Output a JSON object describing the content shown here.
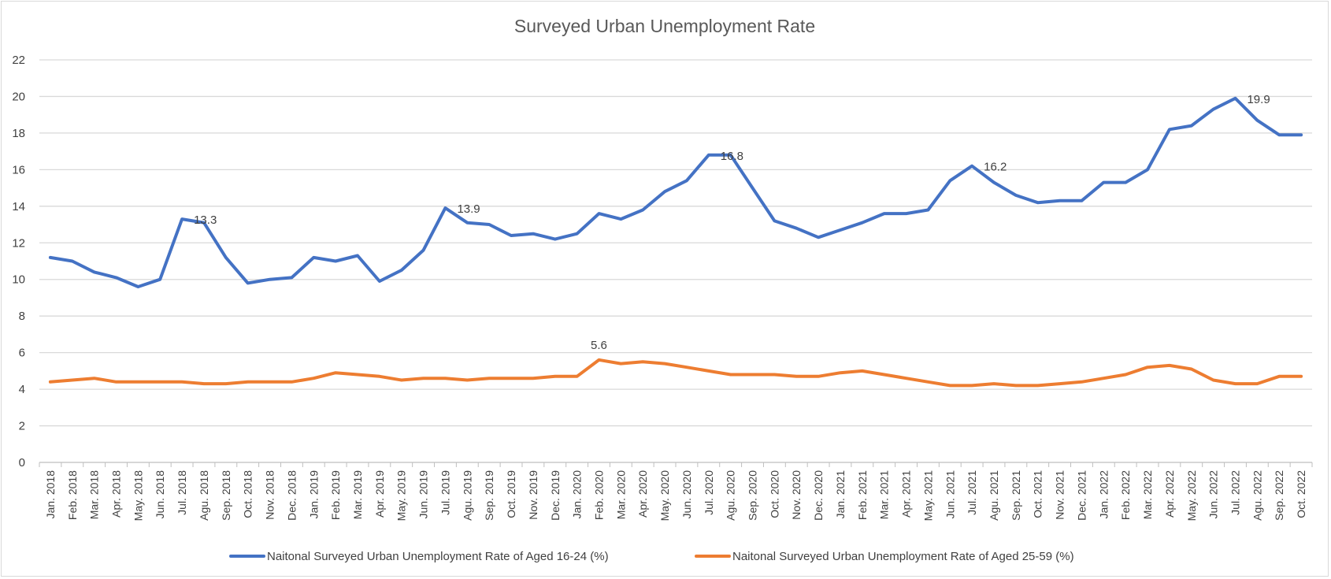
{
  "colors": {
    "series1": "#4472c4",
    "series2": "#ed7d31",
    "grid": "#d9d9d9",
    "text": "#404040"
  },
  "chart_data": {
    "type": "line",
    "title": "Surveyed Urban Unemployment Rate",
    "xlabel": "",
    "ylabel": "",
    "ylim": [
      0,
      22
    ],
    "yticks": [
      0,
      2,
      4,
      6,
      8,
      10,
      12,
      14,
      16,
      18,
      20,
      22
    ],
    "grid": true,
    "legend": "bottom",
    "categories": [
      "Jan. 2018",
      "Feb. 2018",
      "Mar. 2018",
      "Apr. 2018",
      "May. 2018",
      "Jun. 2018",
      "Jul. 2018",
      "Agu. 2018",
      "Sep. 2018",
      "Oct. 2018",
      "Nov. 2018",
      "Dec. 2018",
      "Jan. 2019",
      "Feb. 2019",
      "Mar. 2019",
      "Apr. 2019",
      "May. 2019",
      "Jun. 2019",
      "Jul. 2019",
      "Agu. 2019",
      "Sep. 2019",
      "Oct. 2019",
      "Nov. 2019",
      "Dec. 2019",
      "Jan. 2020",
      "Feb. 2020",
      "Mar. 2020",
      "Apr. 2020",
      "May. 2020",
      "Jun. 2020",
      "Jul. 2020",
      "Agu. 2020",
      "Sep. 2020",
      "Oct. 2020",
      "Nov. 2020",
      "Dec. 2020",
      "Jan. 2021",
      "Feb. 2021",
      "Mar. 2021",
      "Apr. 2021",
      "May. 2021",
      "Jun. 2021",
      "Jul. 2021",
      "Agu. 2021",
      "Sep. 2021",
      "Oct. 2021",
      "Nov. 2021",
      "Dec. 2021",
      "Jan. 2022",
      "Feb. 2022",
      "Mar. 2022",
      "Apr. 2022",
      "May. 2022",
      "Jun. 2022",
      "Jul. 2022",
      "Agu. 2022",
      "Sep. 2022",
      "Oct. 2022"
    ],
    "series": [
      {
        "name": "Naitonal Surveyed Urban Unemployment Rate of Aged 16-24 (%)",
        "values": [
          11.2,
          11.0,
          10.4,
          10.1,
          9.6,
          10.0,
          13.3,
          13.1,
          11.2,
          9.8,
          10.0,
          10.1,
          11.2,
          11.0,
          11.3,
          9.9,
          10.5,
          11.6,
          13.9,
          13.1,
          13.0,
          12.4,
          12.5,
          12.2,
          12.5,
          13.6,
          13.3,
          13.8,
          14.8,
          15.4,
          16.8,
          16.8,
          15.0,
          13.2,
          12.8,
          12.3,
          12.7,
          13.1,
          13.6,
          13.6,
          13.8,
          15.4,
          16.2,
          15.3,
          14.6,
          14.2,
          14.3,
          14.3,
          15.3,
          15.3,
          16.0,
          18.2,
          18.4,
          19.3,
          19.9,
          18.7,
          17.9,
          17.9
        ]
      },
      {
        "name": "Naitonal Surveyed Urban Unemployment Rate of Aged 25-59 (%)",
        "values": [
          4.4,
          4.5,
          4.6,
          4.4,
          4.4,
          4.4,
          4.4,
          4.3,
          4.3,
          4.4,
          4.4,
          4.4,
          4.6,
          4.9,
          4.8,
          4.7,
          4.5,
          4.6,
          4.6,
          4.5,
          4.6,
          4.6,
          4.6,
          4.7,
          4.7,
          5.6,
          5.4,
          5.5,
          5.4,
          5.2,
          5.0,
          4.8,
          4.8,
          4.8,
          4.7,
          4.7,
          4.9,
          5.0,
          4.8,
          4.6,
          4.4,
          4.2,
          4.2,
          4.3,
          4.2,
          4.2,
          4.3,
          4.4,
          4.6,
          4.8,
          5.2,
          5.3,
          5.1,
          4.5,
          4.3,
          4.3,
          4.7,
          4.7
        ]
      }
    ],
    "annotations": [
      {
        "series": 0,
        "index": 6,
        "text": "13.3"
      },
      {
        "series": 0,
        "index": 18,
        "text": "13.9"
      },
      {
        "series": 0,
        "index": 30,
        "text": "16.8"
      },
      {
        "series": 0,
        "index": 42,
        "text": "16.2"
      },
      {
        "series": 0,
        "index": 54,
        "text": "19.9"
      },
      {
        "series": 1,
        "index": 25,
        "text": "5.6"
      }
    ]
  }
}
